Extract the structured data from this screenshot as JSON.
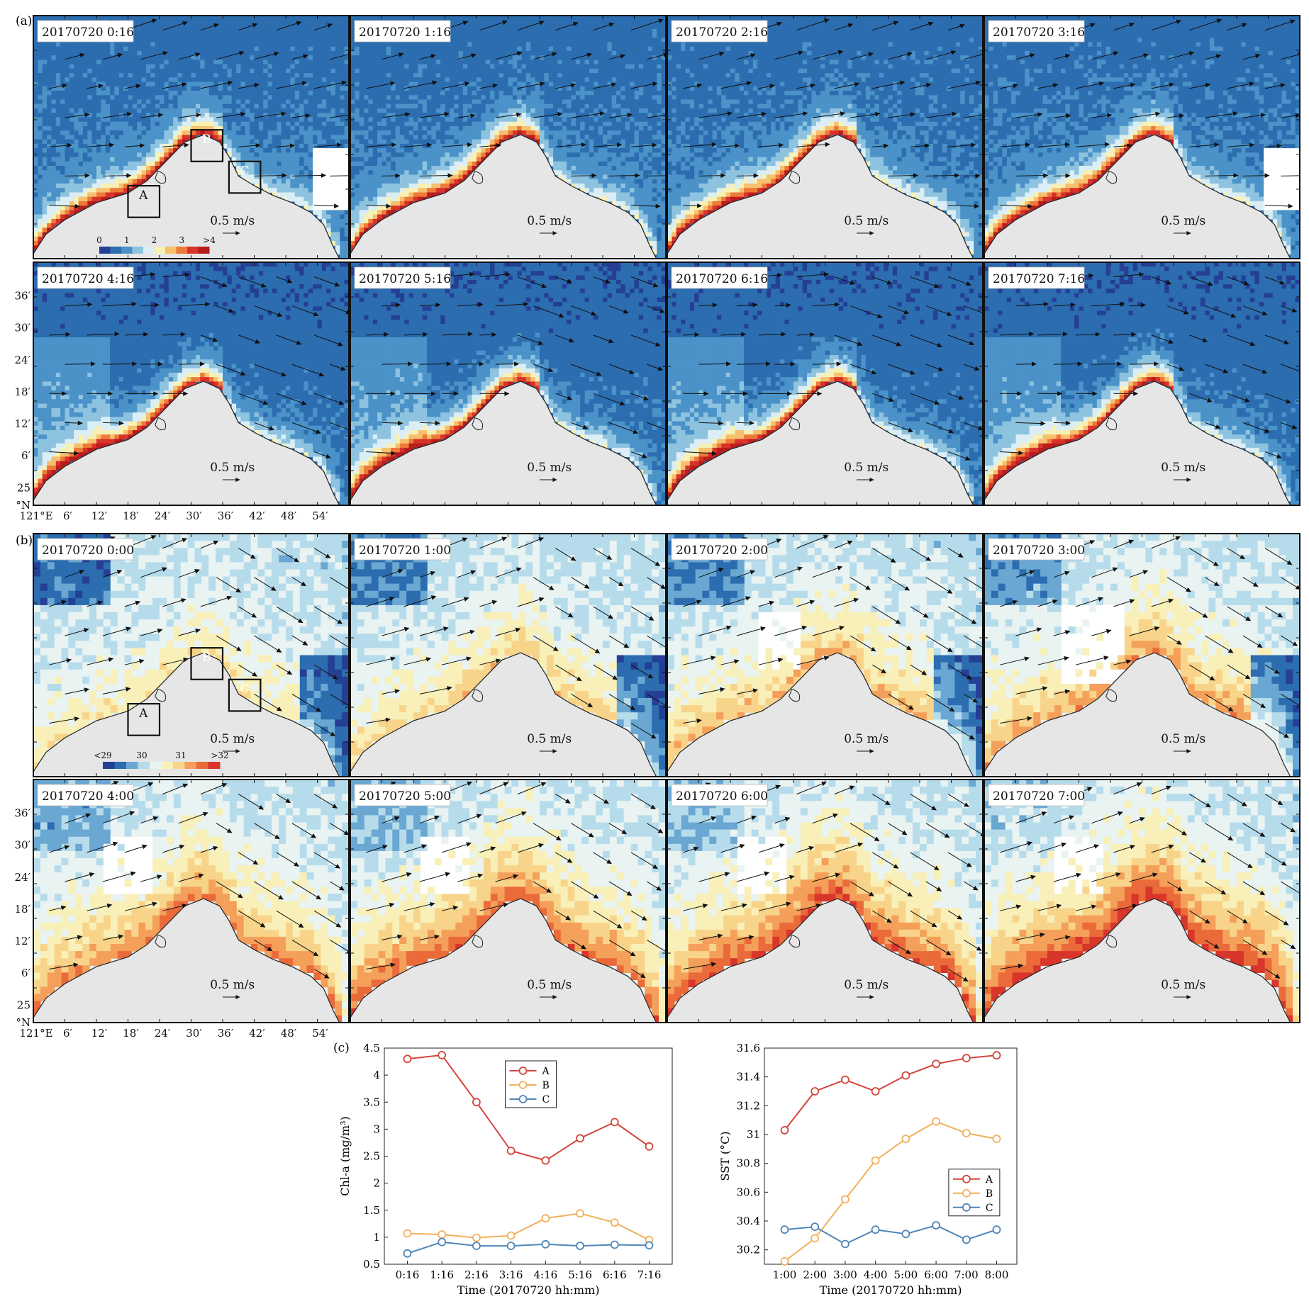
{
  "figure": {
    "panel_a_label": "(a)",
    "panel_b_label": "(b)",
    "panel_c_label": "(c)"
  },
  "panel_a": {
    "timestamps": [
      "20170720 0:16",
      "20170720 1:16",
      "20170720 2:16",
      "20170720 3:16",
      "20170720 4:16",
      "20170720 5:16",
      "20170720 6:16",
      "20170720 7:16"
    ],
    "scale_label": "0.5 m/s",
    "colorbar_ticks": [
      "0",
      "1",
      "2",
      "3",
      ">4"
    ],
    "box_labels": [
      "A",
      "B",
      "C"
    ],
    "colors": [
      "#243f94",
      "#2c6db0",
      "#4a92c8",
      "#8ec3e0",
      "#dbeef5",
      "#f7f1b5",
      "#f6c06e",
      "#ee7a3a",
      "#d8322b",
      "#b81d1d"
    ]
  },
  "panel_b": {
    "timestamps": [
      "20170720 0:00",
      "20170720 1:00",
      "20170720 2:00",
      "20170720 3:00",
      "20170720 4:00",
      "20170720 5:00",
      "20170720 6:00",
      "20170720 7:00"
    ],
    "scale_label": "0.5 m/s",
    "colorbar_ticks": [
      "<29",
      "30",
      "31",
      ">32"
    ],
    "box_labels": [
      "A",
      "B",
      "C"
    ],
    "colors": [
      "#243f94",
      "#2c6db0",
      "#6aa7d2",
      "#b6dcec",
      "#e8f3f2",
      "#f8f0b8",
      "#f8d48a",
      "#f4a05a",
      "#ea6a3a",
      "#d8352b"
    ]
  },
  "map_axes": {
    "lat_ticks": [
      "36′",
      "30′",
      "24′",
      "18′",
      "12′",
      "6′",
      "25"
    ],
    "lat_unit": "°N",
    "lon_ticks": [
      "121°E",
      "6′",
      "12′",
      "18′",
      "24′",
      "30′",
      "36′",
      "42′",
      "48′",
      "54′"
    ]
  },
  "chart_data": [
    {
      "type": "line",
      "xlabel": "Time (20170720 hh:mm)",
      "ylabel": "Chl-a (mg/m³)",
      "categories": [
        "0:16",
        "1:16",
        "2:16",
        "3:16",
        "4:16",
        "5:16",
        "6:16",
        "7:16"
      ],
      "ylim": [
        0.5,
        4.5
      ],
      "yticks": [
        "0.5",
        "1",
        "1.5",
        "2",
        "2.5",
        "3",
        "3.5",
        "4",
        "4.5"
      ],
      "legend": "top-center",
      "series": [
        {
          "name": "A",
          "color": "#d2463c",
          "values": [
            4.3,
            4.37,
            3.5,
            2.6,
            2.42,
            2.83,
            3.13,
            2.68
          ]
        },
        {
          "name": "B",
          "color": "#f2b05c",
          "values": [
            1.07,
            1.05,
            0.99,
            1.03,
            1.35,
            1.44,
            1.27,
            0.95
          ]
        },
        {
          "name": "C",
          "color": "#4f86b8",
          "values": [
            0.7,
            0.91,
            0.84,
            0.84,
            0.87,
            0.84,
            0.86,
            0.85
          ]
        }
      ]
    },
    {
      "type": "line",
      "xlabel": "Time (20170720 hh:mm)",
      "ylabel": "SST (°C)",
      "categories": [
        "1:00",
        "2:00",
        "3:00",
        "4:00",
        "5:00",
        "6:00",
        "7:00",
        "8:00"
      ],
      "ylim": [
        30.1,
        31.6
      ],
      "yticks": [
        "30.2",
        "30.4",
        "30.6",
        "30.8",
        "31",
        "31.2",
        "31.4",
        "31.6"
      ],
      "legend": "center-right",
      "series": [
        {
          "name": "A",
          "color": "#d2463c",
          "values": [
            31.03,
            31.3,
            31.38,
            31.3,
            31.41,
            31.49,
            31.53,
            31.55
          ]
        },
        {
          "name": "B",
          "color": "#f2b05c",
          "values": [
            30.12,
            30.28,
            30.55,
            30.82,
            30.97,
            31.09,
            31.01,
            30.97
          ]
        },
        {
          "name": "C",
          "color": "#4f86b8",
          "values": [
            30.34,
            30.36,
            30.24,
            30.34,
            30.31,
            30.37,
            30.27,
            30.34
          ]
        }
      ]
    }
  ]
}
